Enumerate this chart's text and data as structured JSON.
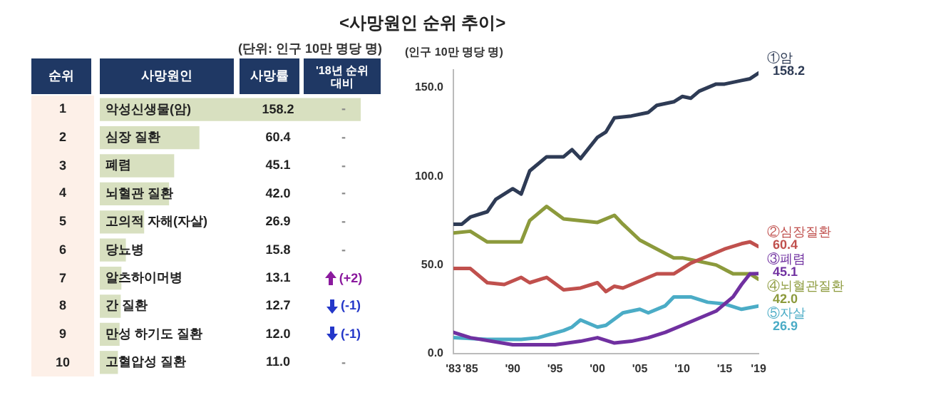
{
  "chart_data": [
    {
      "type": "bar",
      "orientation": "horizontal",
      "subtitle": "(단위: 인구 10만 명당 명)",
      "categories": [
        "악성신생물(암)",
        "심장 질환",
        "폐렴",
        "뇌혈관 질환",
        "고의적 자해(자살)",
        "당뇨병",
        "알츠하이머병",
        "간 질환",
        "만성 하기도 질환",
        "고혈압성 질환"
      ],
      "values": [
        158.2,
        60.4,
        45.1,
        42.0,
        26.9,
        15.8,
        13.1,
        12.7,
        12.0,
        11.0
      ],
      "value_labels": [
        "158.2",
        "60.4",
        "45.1",
        "42.0",
        "26.9",
        "15.8",
        "13.1",
        "12.7",
        "12.0",
        "11.0"
      ],
      "color": "#d8e0c0",
      "tick_labels": "y",
      "annotations": [
        "순위",
        "사망원인",
        "사망률",
        "'18년 순위 대비",
        "1",
        "2",
        "3",
        "4",
        "5",
        "6",
        "7",
        "8",
        "9",
        "10",
        "-",
        "-",
        "-",
        "-",
        "-",
        "-",
        "(+2)",
        "(-1)",
        "(-1)",
        "-"
      ]
    },
    {
      "type": "line",
      "title": "<사망원인 순위 추이>",
      "ylabel": "(인구 10만 명당 명)",
      "xlim": [
        1983,
        2019
      ],
      "xticks": [
        {
          "value": 1983,
          "label": "'83"
        },
        {
          "value": 1985,
          "label": "'85"
        },
        {
          "value": 1990,
          "label": "'90"
        },
        {
          "value": 1995,
          "label": "'95"
        },
        {
          "value": 2000,
          "label": "'00"
        },
        {
          "value": 2005,
          "label": "'05"
        },
        {
          "value": 2010,
          "label": "'10"
        },
        {
          "value": 2015,
          "label": "'15"
        },
        {
          "value": 2019,
          "label": "'19"
        }
      ],
      "ylim": [
        0,
        160
      ],
      "yticks": [
        {
          "value": 0,
          "label": "0.0"
        },
        {
          "value": 50,
          "label": "50.0"
        },
        {
          "value": 100,
          "label": "100.0"
        },
        {
          "value": 150,
          "label": "150.0"
        }
      ],
      "grid": false,
      "marker": "none",
      "series": [
        {
          "name": "①암",
          "color": "#2e3b55",
          "x": [
            1983,
            1984,
            1985,
            1987,
            1988,
            1990,
            1991,
            1992,
            1994,
            1996,
            1997,
            1998,
            2000,
            2001,
            2002,
            2004,
            2006,
            2007,
            2009,
            2010,
            2011,
            2012,
            2014,
            2015,
            2017,
            2018,
            2019
          ],
          "values": [
            73,
            73,
            77,
            80,
            87,
            93,
            90,
            103,
            111,
            111,
            115,
            110,
            122,
            125,
            133,
            134,
            136,
            140,
            142,
            145,
            144,
            148,
            152,
            152,
            154,
            155,
            158.2
          ],
          "value_labels": [
            null,
            null,
            null,
            null,
            null,
            null,
            null,
            null,
            null,
            null,
            null,
            null,
            null,
            null,
            null,
            null,
            null,
            null,
            null,
            null,
            null,
            null,
            null,
            null,
            null,
            null,
            "158.2"
          ]
        },
        {
          "name": "②심장질환",
          "color": "#c0504d",
          "x": [
            1983,
            1985,
            1987,
            1989,
            1991,
            1992,
            1994,
            1996,
            1998,
            2000,
            2001,
            2002,
            2003,
            2005,
            2007,
            2009,
            2011,
            2013,
            2015,
            2017,
            2018,
            2019
          ],
          "values": [
            48,
            48,
            40,
            39,
            43,
            40,
            43,
            36,
            37,
            40,
            35,
            38,
            37,
            41,
            45,
            45,
            51,
            55,
            59,
            62,
            63,
            60.4
          ],
          "value_labels": [
            null,
            null,
            null,
            null,
            null,
            null,
            null,
            null,
            null,
            null,
            null,
            null,
            null,
            null,
            null,
            null,
            null,
            null,
            null,
            null,
            null,
            "60.4"
          ]
        },
        {
          "name": "③폐렴",
          "color": "#7030a0",
          "x": [
            1983,
            1985,
            1990,
            1995,
            1998,
            2000,
            2002,
            2004,
            2006,
            2008,
            2010,
            2012,
            2014,
            2016,
            2017,
            2018,
            2019
          ],
          "values": [
            12,
            9,
            5,
            5,
            7,
            9,
            6,
            7,
            9,
            12,
            16,
            20,
            24,
            32,
            39,
            45,
            45.1
          ],
          "value_labels": [
            null,
            null,
            null,
            null,
            null,
            null,
            null,
            null,
            null,
            null,
            null,
            null,
            null,
            null,
            null,
            null,
            "45.1"
          ]
        },
        {
          "name": "④뇌혈관질환",
          "color": "#8c9a3c",
          "x": [
            1983,
            1985,
            1987,
            1989,
            1991,
            1992,
            1994,
            1996,
            1998,
            2000,
            2002,
            2003,
            2005,
            2007,
            2009,
            2010,
            2012,
            2014,
            2016,
            2018,
            2019
          ],
          "values": [
            68,
            69,
            63,
            63,
            63,
            75,
            83,
            76,
            75,
            74,
            78,
            73,
            64,
            59,
            54,
            54,
            52,
            50,
            45,
            45,
            42.0
          ],
          "value_labels": [
            null,
            null,
            null,
            null,
            null,
            null,
            null,
            null,
            null,
            null,
            null,
            null,
            null,
            null,
            null,
            null,
            null,
            null,
            null,
            null,
            "42.0"
          ]
        },
        {
          "name": "⑤자살",
          "color": "#4bacc6",
          "x": [
            1983,
            1987,
            1991,
            1993,
            1996,
            1997,
            1998,
            2000,
            2001,
            2003,
            2005,
            2006,
            2008,
            2009,
            2011,
            2013,
            2015,
            2017,
            2019
          ],
          "values": [
            9,
            8,
            8,
            9,
            13,
            15,
            19,
            15,
            16,
            23,
            25,
            23,
            27,
            32,
            32,
            29,
            28,
            25,
            26.9
          ],
          "value_labels": [
            null,
            null,
            null,
            null,
            null,
            null,
            null,
            null,
            null,
            null,
            null,
            null,
            null,
            null,
            null,
            null,
            null,
            null,
            "26.9"
          ]
        }
      ]
    }
  ]
}
